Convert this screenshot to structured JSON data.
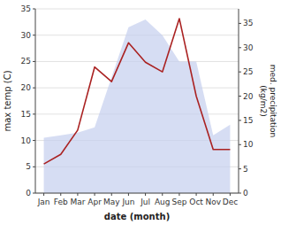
{
  "chart_data": {
    "type": "area",
    "xlabel": "date (month)",
    "ylabel": "max temp (C)",
    "y2label": "med. precipitation\n(kg/m2)",
    "categories": [
      "Jan",
      "Feb",
      "Mar",
      "Apr",
      "May",
      "Jun",
      "Jul",
      "Aug",
      "Sep",
      "Oct",
      "Nov",
      "Dec"
    ],
    "ylim": [
      0,
      35
    ],
    "yticks": [
      0,
      5,
      10,
      15,
      20,
      25,
      30,
      35
    ],
    "y2lim": [
      0,
      38
    ],
    "y2ticks": [
      0,
      5,
      10,
      15,
      20,
      25,
      30,
      35
    ],
    "grid": true,
    "series": [
      {
        "type": "area",
        "color": "#c5cfee",
        "values": [
          10.5,
          11.0,
          11.5,
          12.5,
          22.0,
          31.5,
          33.0,
          30.0,
          25.0,
          25.0,
          11.0,
          13.0
        ]
      },
      {
        "type": "line",
        "color": "#aa2222",
        "axis": "y2",
        "values": [
          6,
          8,
          13,
          26,
          23,
          31,
          27,
          25,
          36,
          20,
          9,
          9
        ]
      }
    ]
  }
}
